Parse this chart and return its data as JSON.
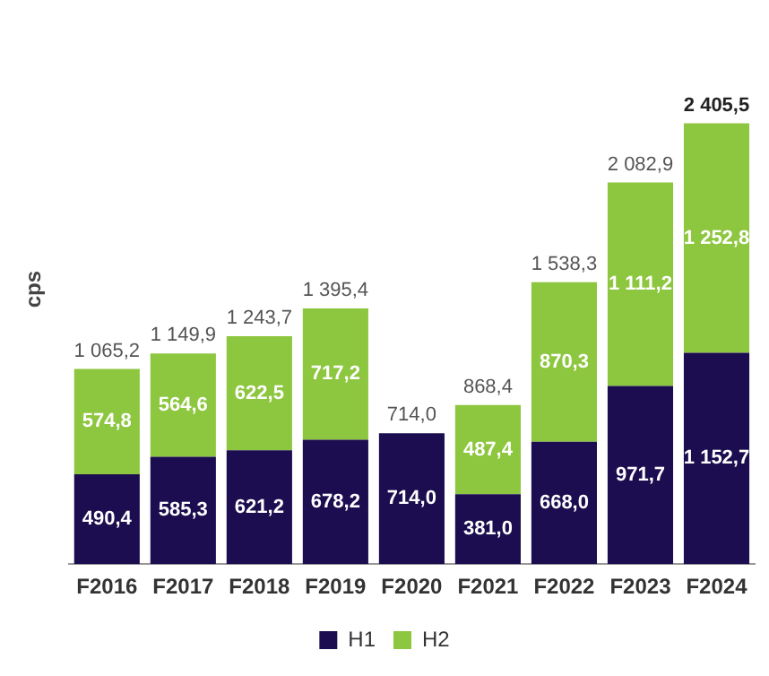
{
  "chart_data": {
    "type": "bar",
    "stacked": true,
    "ylabel": "cps",
    "tick_labels": "x",
    "grid": false,
    "legend": "bottom",
    "categories": [
      "F2016",
      "F2017",
      "F2018",
      "F2019",
      "F2020",
      "F2021",
      "F2022",
      "F2023",
      "F2024"
    ],
    "series": [
      {
        "name": "H1",
        "color": "#1b0d4f",
        "values": [
          490.4,
          585.3,
          621.2,
          678.2,
          714.0,
          381.0,
          668.0,
          971.7,
          1152.7
        ],
        "value_labels": [
          "490,4",
          "585,3",
          "621,2",
          "678,2",
          "714,0",
          "381,0",
          "668,0",
          "971,7",
          "1 152,7"
        ]
      },
      {
        "name": "H2",
        "color": "#8dc63f",
        "values": [
          574.8,
          564.6,
          622.5,
          717.2,
          null,
          487.4,
          870.3,
          1111.2,
          1252.8
        ],
        "value_labels": [
          "574,8",
          "564,6",
          "622,5",
          "717,2",
          null,
          "487,4",
          "870,3",
          "1 111,2",
          "1 252,8"
        ]
      }
    ],
    "totals": [
      "1 065,2",
      "1 149,9",
      "1 243,7",
      "1 395,4",
      "714,0",
      "868,4",
      "1 538,3",
      "2 082,9",
      "2 405,5"
    ]
  }
}
